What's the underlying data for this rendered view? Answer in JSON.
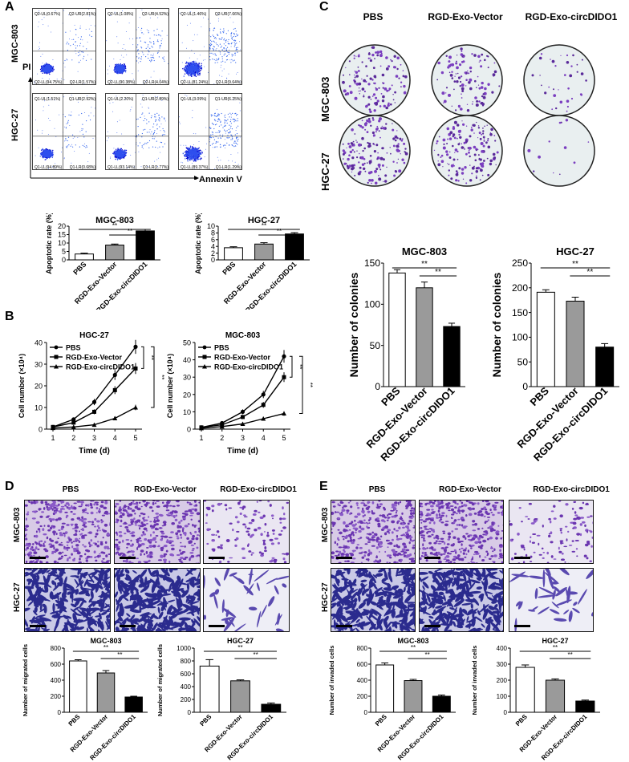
{
  "panels": {
    "a": "A",
    "b": "B",
    "c": "C",
    "d": "D",
    "e": "E"
  },
  "panel_a": {
    "rows": [
      "MGC-803",
      "HGC-27"
    ],
    "y_axis": "PI",
    "x_axis": "Annexin V",
    "quadrants": [
      [
        [
          "Q2-UL(0.67%)",
          "Q2-UR(2.81%)",
          "Q2-LL(94.75%)",
          "Q2-LR(1.57%)"
        ],
        [
          "Q2-UL(1.08%)",
          "Q2-UR(4.52%)",
          "Q2-LL(90.38%)",
          "Q2-LR(4.04%)"
        ],
        [
          "Q2-UL(1.46%)",
          "Q2-UR(7.66%)",
          "Q2-LL(81.24%)",
          "Q2-LR(9.64%)"
        ]
      ],
      [
        [
          "Q1-UL(1.51%)",
          "Q1-UR(2.92%)",
          "Q1-LL(94.89%)",
          "Q1-LR(0.68%)"
        ],
        [
          "Q1-UL(2.20%)",
          "Q1-UR(2.89%)",
          "Q1-LL(93.14%)",
          "Q1-LR(1.77%)"
        ],
        [
          "Q1-UL(3.09%)",
          "Q1-UR(6.25%)",
          "Q1-LL(89.37%)",
          "Q1-LR(1.29%)"
        ]
      ]
    ]
  },
  "panel_c": {
    "columns": [
      "PBS",
      "RGD-Exo-Vector",
      "RGD-Exo-circDIDO1"
    ],
    "rows": [
      "MGC-803",
      "HGC-27"
    ]
  },
  "panel_d": {
    "columns": [
      "PBS",
      "RGD-Exo-Vector",
      "RGD-Exo-circDIDO1"
    ],
    "rows": [
      "MGC-803",
      "HGC-27"
    ]
  },
  "panel_e": {
    "columns": [
      "PBS",
      "RGD-Exo-Vector",
      "RGD-Exo-circDIDO1"
    ],
    "rows": [
      "MGC-803",
      "HGC-27"
    ]
  },
  "chart_data": [
    {
      "id": "a1",
      "type": "bar",
      "title": "MGC-803",
      "ylabel": "Apoptotic rate (%)",
      "categories": [
        "PBS",
        "RGD-Exo-Vector",
        "RGD-Exo-circDIDO1"
      ],
      "values": [
        3.5,
        8.8,
        17.2
      ],
      "errors": [
        0.5,
        0.6,
        0.9
      ],
      "ylim": [
        0,
        20
      ],
      "ticks": [
        0,
        5,
        10,
        15,
        20
      ],
      "sig": [
        "**",
        "**"
      ]
    },
    {
      "id": "a2",
      "type": "bar",
      "title": "HGC-27",
      "ylabel": "Apoptotic rate (%)",
      "categories": [
        "PBS",
        "RGD-Exo-Vector",
        "RGD-Exo-circDIDO1"
      ],
      "values": [
        3.6,
        4.7,
        7.7
      ],
      "errors": [
        0.3,
        0.4,
        0.4
      ],
      "ylim": [
        0,
        10
      ],
      "ticks": [
        0,
        2,
        4,
        6,
        8,
        10
      ],
      "sig": [
        "**",
        "**"
      ]
    },
    {
      "id": "b1",
      "type": "line",
      "title": "HGC-27",
      "ylabel": "Cell number (×10⁴)",
      "xlabel": "Time (d)",
      "x": [
        1,
        2,
        3,
        4,
        5
      ],
      "ylim": [
        0,
        40
      ],
      "ticks": [
        0,
        10,
        20,
        30,
        40
      ],
      "legend": "top-left",
      "series": [
        {
          "name": "PBS",
          "values": [
            1,
            4.5,
            12.5,
            25,
            38
          ]
        },
        {
          "name": "RGD-Exo-Vector",
          "values": [
            1,
            3,
            8,
            18,
            28
          ]
        },
        {
          "name": "RGD-Exo-circDIDO1",
          "values": [
            0.5,
            1,
            2,
            5,
            10
          ]
        }
      ],
      "sig": [
        "**",
        "**"
      ]
    },
    {
      "id": "b2",
      "type": "line",
      "title": "MGC-803",
      "ylabel": "Cell number (×10⁴)",
      "xlabel": "Time (d)",
      "x": [
        1,
        2,
        3,
        4,
        5
      ],
      "ylim": [
        0,
        50
      ],
      "ticks": [
        0,
        10,
        20,
        30,
        40,
        50
      ],
      "legend": "top-left",
      "series": [
        {
          "name": "PBS",
          "values": [
            1,
            3.5,
            10,
            20,
            42
          ]
        },
        {
          "name": "RGD-Exo-Vector",
          "values": [
            1,
            2.5,
            7,
            14,
            30
          ]
        },
        {
          "name": "RGD-Exo-circDIDO1",
          "values": [
            0.5,
            1.5,
            3,
            6,
            9
          ]
        }
      ],
      "sig": [
        "**",
        "**"
      ]
    },
    {
      "id": "c1",
      "type": "bar",
      "title": "MGC-803",
      "ylabel": "Number of colonies",
      "categories": [
        "PBS",
        "RGD-Exo-Vector",
        "RGD-Exo-circDIDO1"
      ],
      "values": [
        138,
        120,
        73
      ],
      "errors": [
        4,
        7,
        4
      ],
      "ylim": [
        0,
        150
      ],
      "ticks": [
        0,
        50,
        100,
        150
      ],
      "sig": [
        "**",
        "**"
      ]
    },
    {
      "id": "c2",
      "type": "bar",
      "title": "HGC-27",
      "ylabel": "Number of colonies",
      "categories": [
        "PBS",
        "RGD-Exo-Vector",
        "RGD-Exo-circDIDO1"
      ],
      "values": [
        191,
        173,
        80
      ],
      "errors": [
        5,
        8,
        7
      ],
      "ylim": [
        0,
        250
      ],
      "ticks": [
        0,
        50,
        100,
        150,
        200,
        250
      ],
      "sig": [
        "**",
        "**"
      ]
    },
    {
      "id": "d1",
      "type": "bar",
      "title": "MGC-803",
      "ylabel": "Number of migrated cells",
      "categories": [
        "PBS",
        "RGD-Exo-Vector",
        "RGD-Exo-circDIDO1"
      ],
      "values": [
        640,
        490,
        190
      ],
      "errors": [
        15,
        30,
        10
      ],
      "ylim": [
        0,
        800
      ],
      "ticks": [
        0,
        200,
        400,
        600,
        800
      ],
      "sig": [
        "**",
        "**"
      ]
    },
    {
      "id": "d2",
      "type": "bar",
      "title": "HGC-27",
      "ylabel": "Number of migrated cells",
      "categories": [
        "PBS",
        "RGD-Exo-Vector",
        "RGD-Exo-circDIDO1"
      ],
      "values": [
        720,
        490,
        125
      ],
      "errors": [
        100,
        15,
        20
      ],
      "ylim": [
        0,
        1000
      ],
      "ticks": [
        0,
        200,
        400,
        600,
        800,
        1000
      ],
      "sig": [
        "**",
        "**"
      ]
    },
    {
      "id": "e1",
      "type": "bar",
      "title": "MGC-803",
      "ylabel": "Number of invaded cells",
      "categories": [
        "PBS",
        "RGD-Exo-Vector",
        "RGD-Exo-circDIDO1"
      ],
      "values": [
        590,
        395,
        200
      ],
      "errors": [
        25,
        15,
        15
      ],
      "ylim": [
        0,
        800
      ],
      "ticks": [
        0,
        200,
        400,
        600,
        800
      ],
      "sig": [
        "**",
        "**"
      ]
    },
    {
      "id": "e2",
      "type": "bar",
      "title": "HGC-27",
      "ylabel": "Number of invaded cells",
      "categories": [
        "PBS",
        "RGD-Exo-Vector",
        "RGD-Exo-circDIDO1"
      ],
      "values": [
        280,
        200,
        70
      ],
      "errors": [
        15,
        8,
        6
      ],
      "ylim": [
        0,
        400
      ],
      "ticks": [
        0,
        100,
        200,
        300,
        400
      ],
      "sig": [
        "**",
        "**"
      ]
    }
  ],
  "colors": {
    "pbs": "#ffffff",
    "vector": "#9a9a9a",
    "circ": "#000000",
    "stain": "#6b3fb3",
    "dense_stain": "#2a2a8c"
  }
}
